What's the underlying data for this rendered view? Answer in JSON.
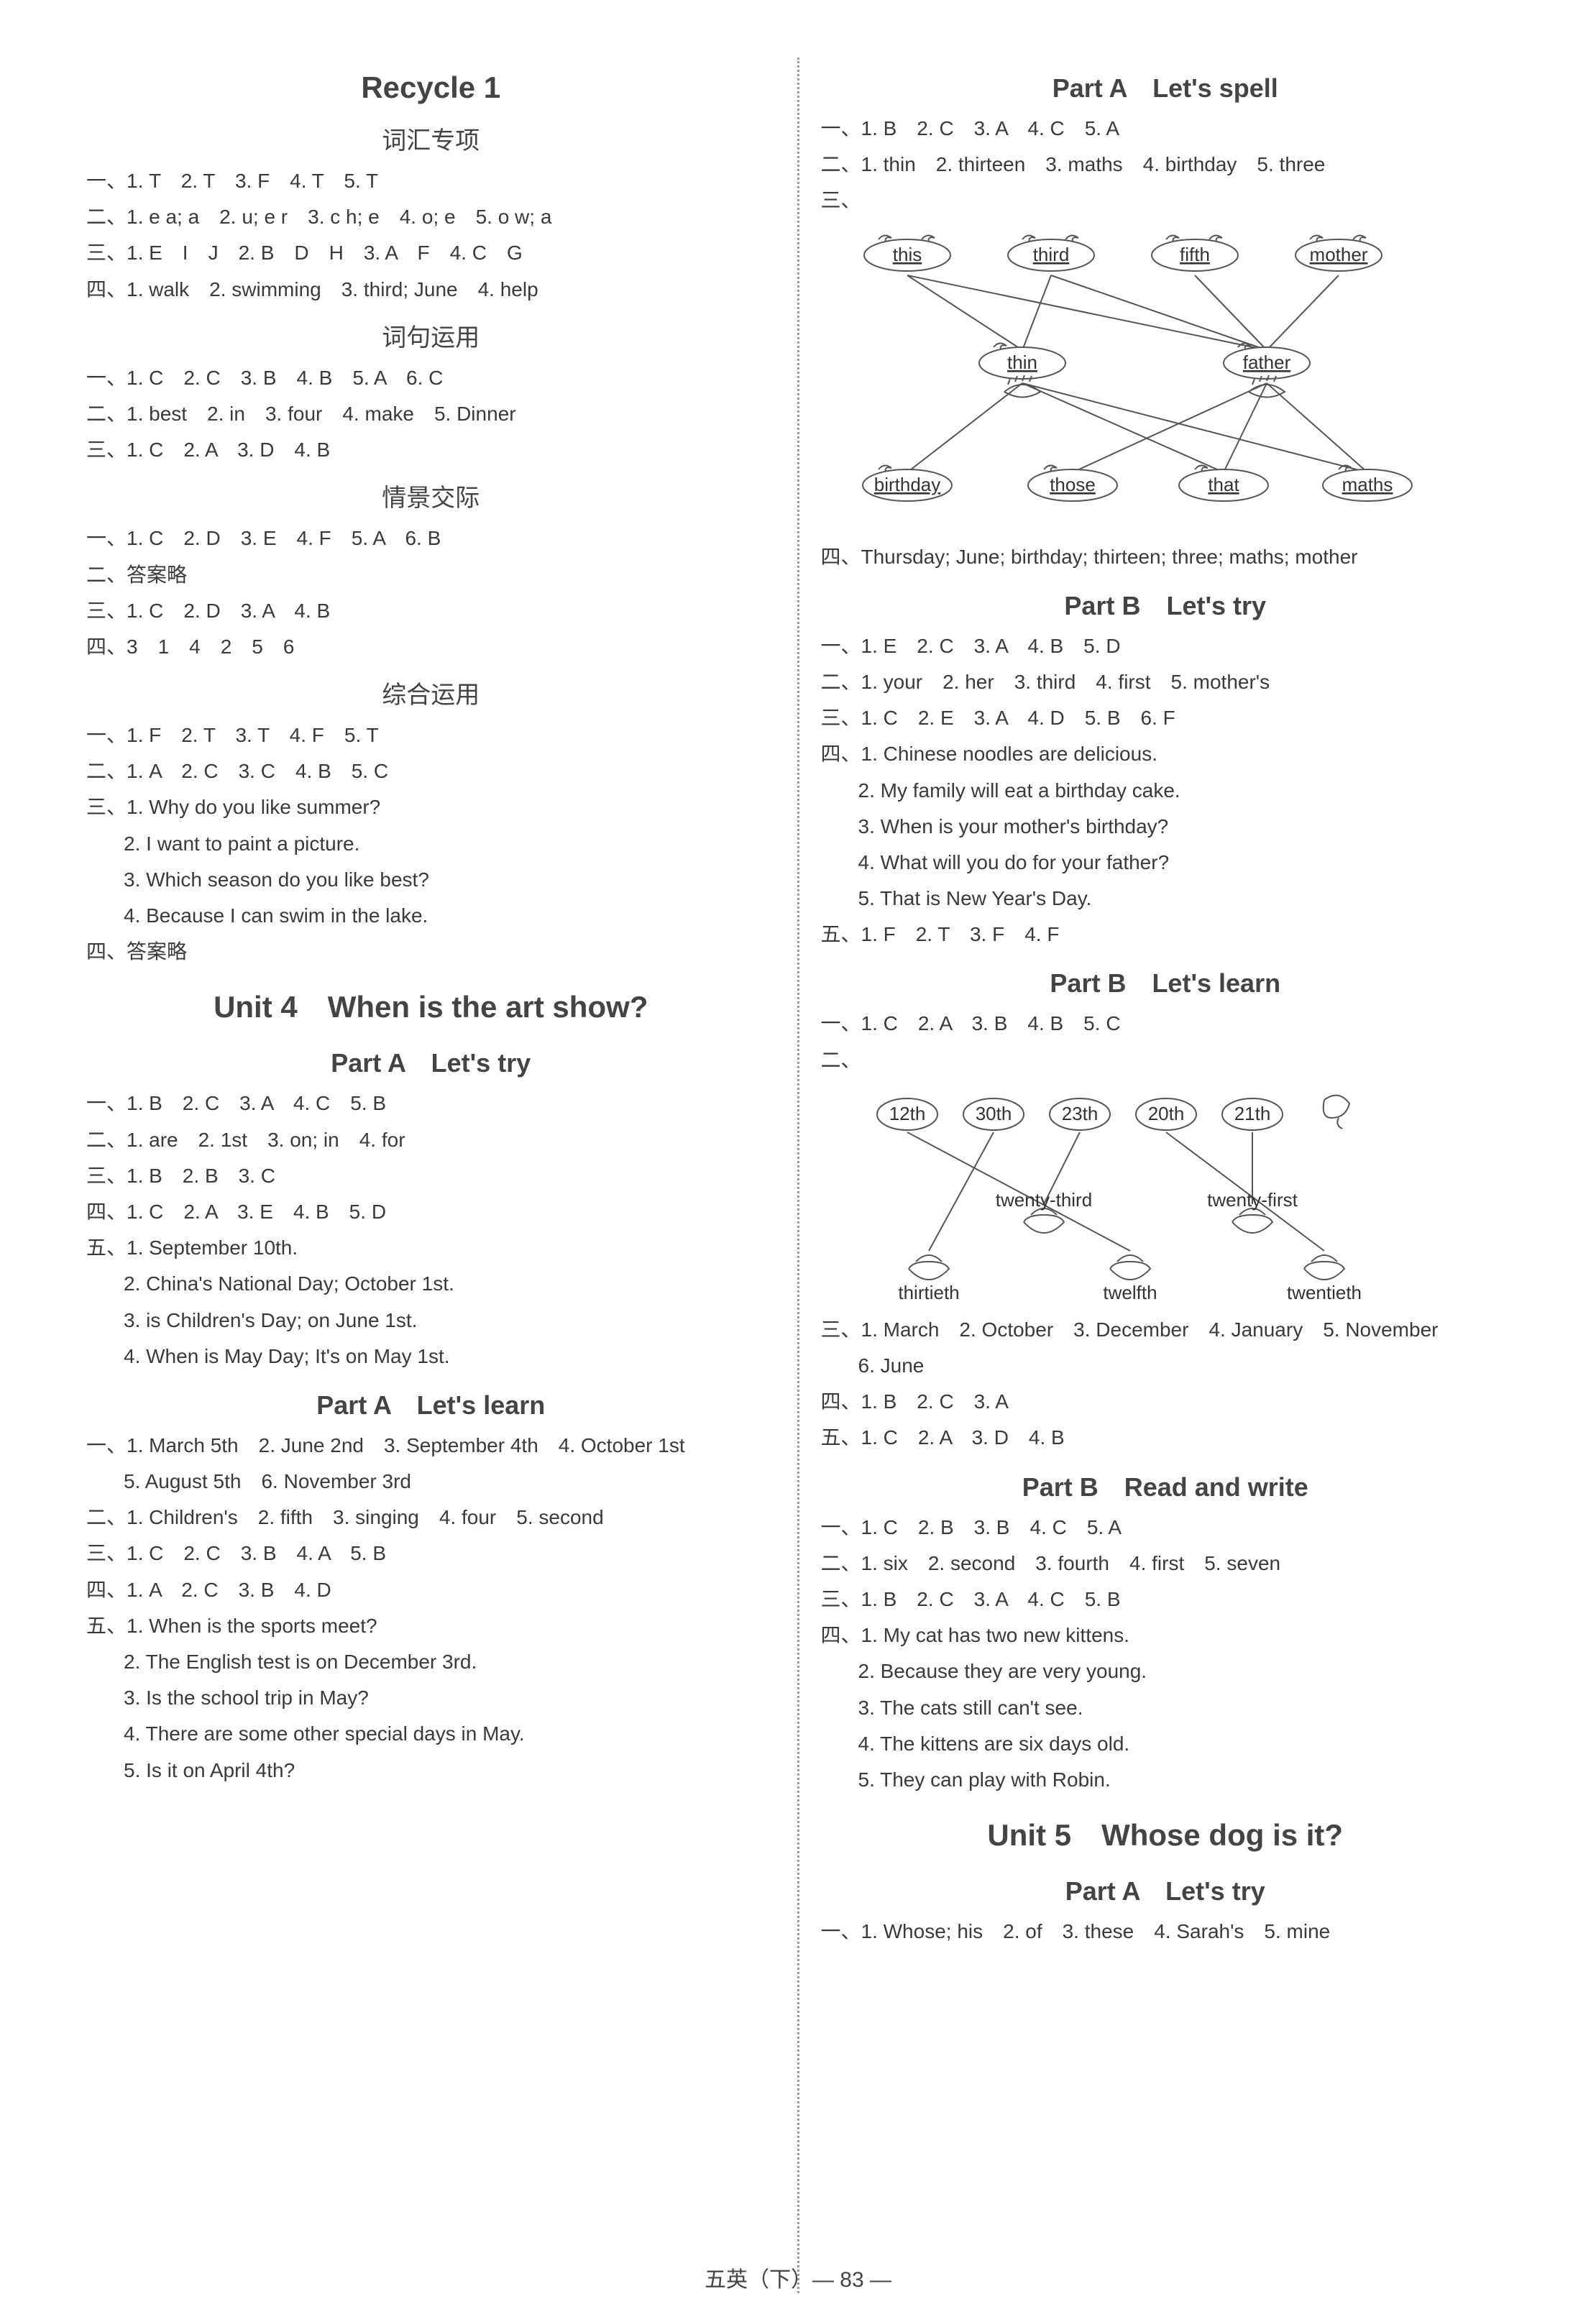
{
  "left": {
    "recycle": {
      "title": "Recycle 1",
      "s1": {
        "heading": "词汇专项",
        "lines": [
          "一、1. T　2. T　3. F　4. T　5. T",
          "二、1. e a; a　2. u; e r　3. c h; e　4. o; e　5. o w; a",
          "三、1. E　I　J　2. B　D　H　3. A　F　4. C　G",
          "四、1. walk　2. swimming　3. third; June　4. help"
        ]
      },
      "s2": {
        "heading": "词句运用",
        "lines": [
          "一、1. C　2. C　3. B　4. B　5. A　6. C",
          "二、1. best　2. in　3. four　4. make　5. Dinner",
          "三、1. C　2. A　3. D　4. B"
        ]
      },
      "s3": {
        "heading": "情景交际",
        "lines": [
          "一、1. C　2. D　3. E　4. F　5. A　6. B",
          "二、答案略",
          "三、1. C　2. D　3. A　4. B",
          "四、3　1　4　2　5　6"
        ]
      },
      "s4": {
        "heading": "综合运用",
        "lines": [
          "一、1. F　2. T　3. T　4. F　5. T",
          "二、1. A　2. C　3. C　4. B　5. C",
          "三、1. Why do you like summer?"
        ],
        "indented": [
          "2. I want to paint a picture.",
          "3. Which season do you like best?",
          "4. Because I can swim in the lake."
        ],
        "last": "四、答案略"
      }
    },
    "unit4": {
      "title": "Unit 4　When is the art show?",
      "pa_try": {
        "heading": "Part A　Let's try",
        "lines": [
          "一、1. B　2. C　3. A　4. C　5. B",
          "二、1. are　2. 1st　3. on; in　4. for",
          "三、1. B　2. B　3. C",
          "四、1. C　2. A　3. E　4. B　5. D",
          "五、1. September 10th."
        ],
        "indented": [
          "2. China's National Day; October 1st.",
          "3. is Children's Day; on June 1st.",
          "4. When is May Day; It's on May 1st."
        ]
      },
      "pa_learn": {
        "heading": "Part A　Let's learn",
        "lines": [
          "一、1. March 5th　2. June 2nd　3. September 4th　4. October 1st"
        ],
        "indented0": "5. August 5th　6. November 3rd",
        "lines2": [
          "二、1. Children's　2. fifth　3. singing　4. four　5. second",
          "三、1. C　2. C　3. B　4. A　5. B",
          "四、1. A　2. C　3. B　4. D",
          "五、1. When is the sports meet?"
        ],
        "indented": [
          "2. The English test is on December 3rd.",
          "3. Is the school trip in May?",
          "4. There are some other special days in May.",
          "5. Is it on April 4th?"
        ]
      }
    }
  },
  "right": {
    "pa_spell": {
      "heading": "Part A　Let's spell",
      "lines": [
        "一、1. B　2. C　3. A　4. C　5. A",
        "二、1. thin　2. thirteen　3. maths　4. birthday　5. three",
        "三、"
      ],
      "diagram1": {
        "row1": [
          "this",
          "third",
          "fifth",
          "mother"
        ],
        "row2": [
          "thin",
          "father"
        ],
        "row3": [
          "birthday",
          "those",
          "that",
          "maths"
        ],
        "edges1": [
          [
            0,
            0
          ],
          [
            0,
            1
          ],
          [
            1,
            0
          ],
          [
            1,
            1
          ],
          [
            2,
            1
          ],
          [
            3,
            1
          ]
        ],
        "edges2": [
          [
            0,
            0
          ],
          [
            0,
            2
          ],
          [
            0,
            3
          ],
          [
            1,
            1
          ],
          [
            1,
            2
          ],
          [
            1,
            3
          ]
        ],
        "colors": {
          "node_stroke": "#555555",
          "edge_stroke": "#555555",
          "text": "#333333"
        }
      },
      "line4": "四、Thursday; June; birthday; thirteen; three; maths; mother"
    },
    "pb_try": {
      "heading": "Part B　Let's try",
      "lines": [
        "一、1. E　2. C　3. A　4. B　5. D",
        "二、1. your　2. her　3. third　4. first　5. mother's",
        "三、1. C　2. E　3. A　4. D　5. B　6. F",
        "四、1. Chinese noodles are delicious."
      ],
      "indented": [
        "2. My family will eat a birthday cake.",
        "3. When is your mother's birthday?",
        "4. What will you do for your father?",
        "5. That is New Year's Day."
      ],
      "last": "五、1. F　2. T　3. F　4. F"
    },
    "pb_learn": {
      "heading": "Part B　Let's learn",
      "lines": [
        "一、1. C　2. A　3. B　4. B　5. C",
        "二、"
      ],
      "diagram2": {
        "top": [
          "12th",
          "30th",
          "23th",
          "20th",
          "21th"
        ],
        "bottom_upper": [
          "twenty-third",
          "twenty-first"
        ],
        "bottom_lower": [
          "thirtieth",
          "twelfth",
          "twentieth"
        ],
        "edges": [
          [
            0,
            "twelfth"
          ],
          [
            1,
            "thirtieth"
          ],
          [
            2,
            "twenty-third"
          ],
          [
            3,
            "twentieth"
          ],
          [
            4,
            "twenty-first"
          ]
        ],
        "colors": {
          "node_stroke": "#555555",
          "edge_stroke": "#555555",
          "text": "#333333"
        }
      },
      "lines2": [
        "三、1. March　2. October　3. December　4. January　5. November"
      ],
      "indented0": "6. June",
      "lines3": [
        "四、1. B　2. C　3. A",
        "五、1. C　2. A　3. D　4. B"
      ]
    },
    "pb_rw": {
      "heading": "Part B　Read and write",
      "lines": [
        "一、1. C　2. B　3. B　4. C　5. A",
        "二、1. six　2. second　3. fourth　4. first　5. seven",
        "三、1. B　2. C　3. A　4. C　5. B",
        "四、1. My cat has two new kittens."
      ],
      "indented": [
        "2. Because they are very young.",
        "3. The cats still can't see.",
        "4. The kittens are six days old.",
        "5. They can play with Robin."
      ]
    },
    "unit5": {
      "title": "Unit 5　Whose dog is it?",
      "pa_try": {
        "heading": "Part A　Let's try",
        "lines": [
          "一、1. Whose; his　2. of　3. these　4. Sarah's　5. mine"
        ]
      }
    }
  },
  "footer": "五英（下）— 83 —"
}
